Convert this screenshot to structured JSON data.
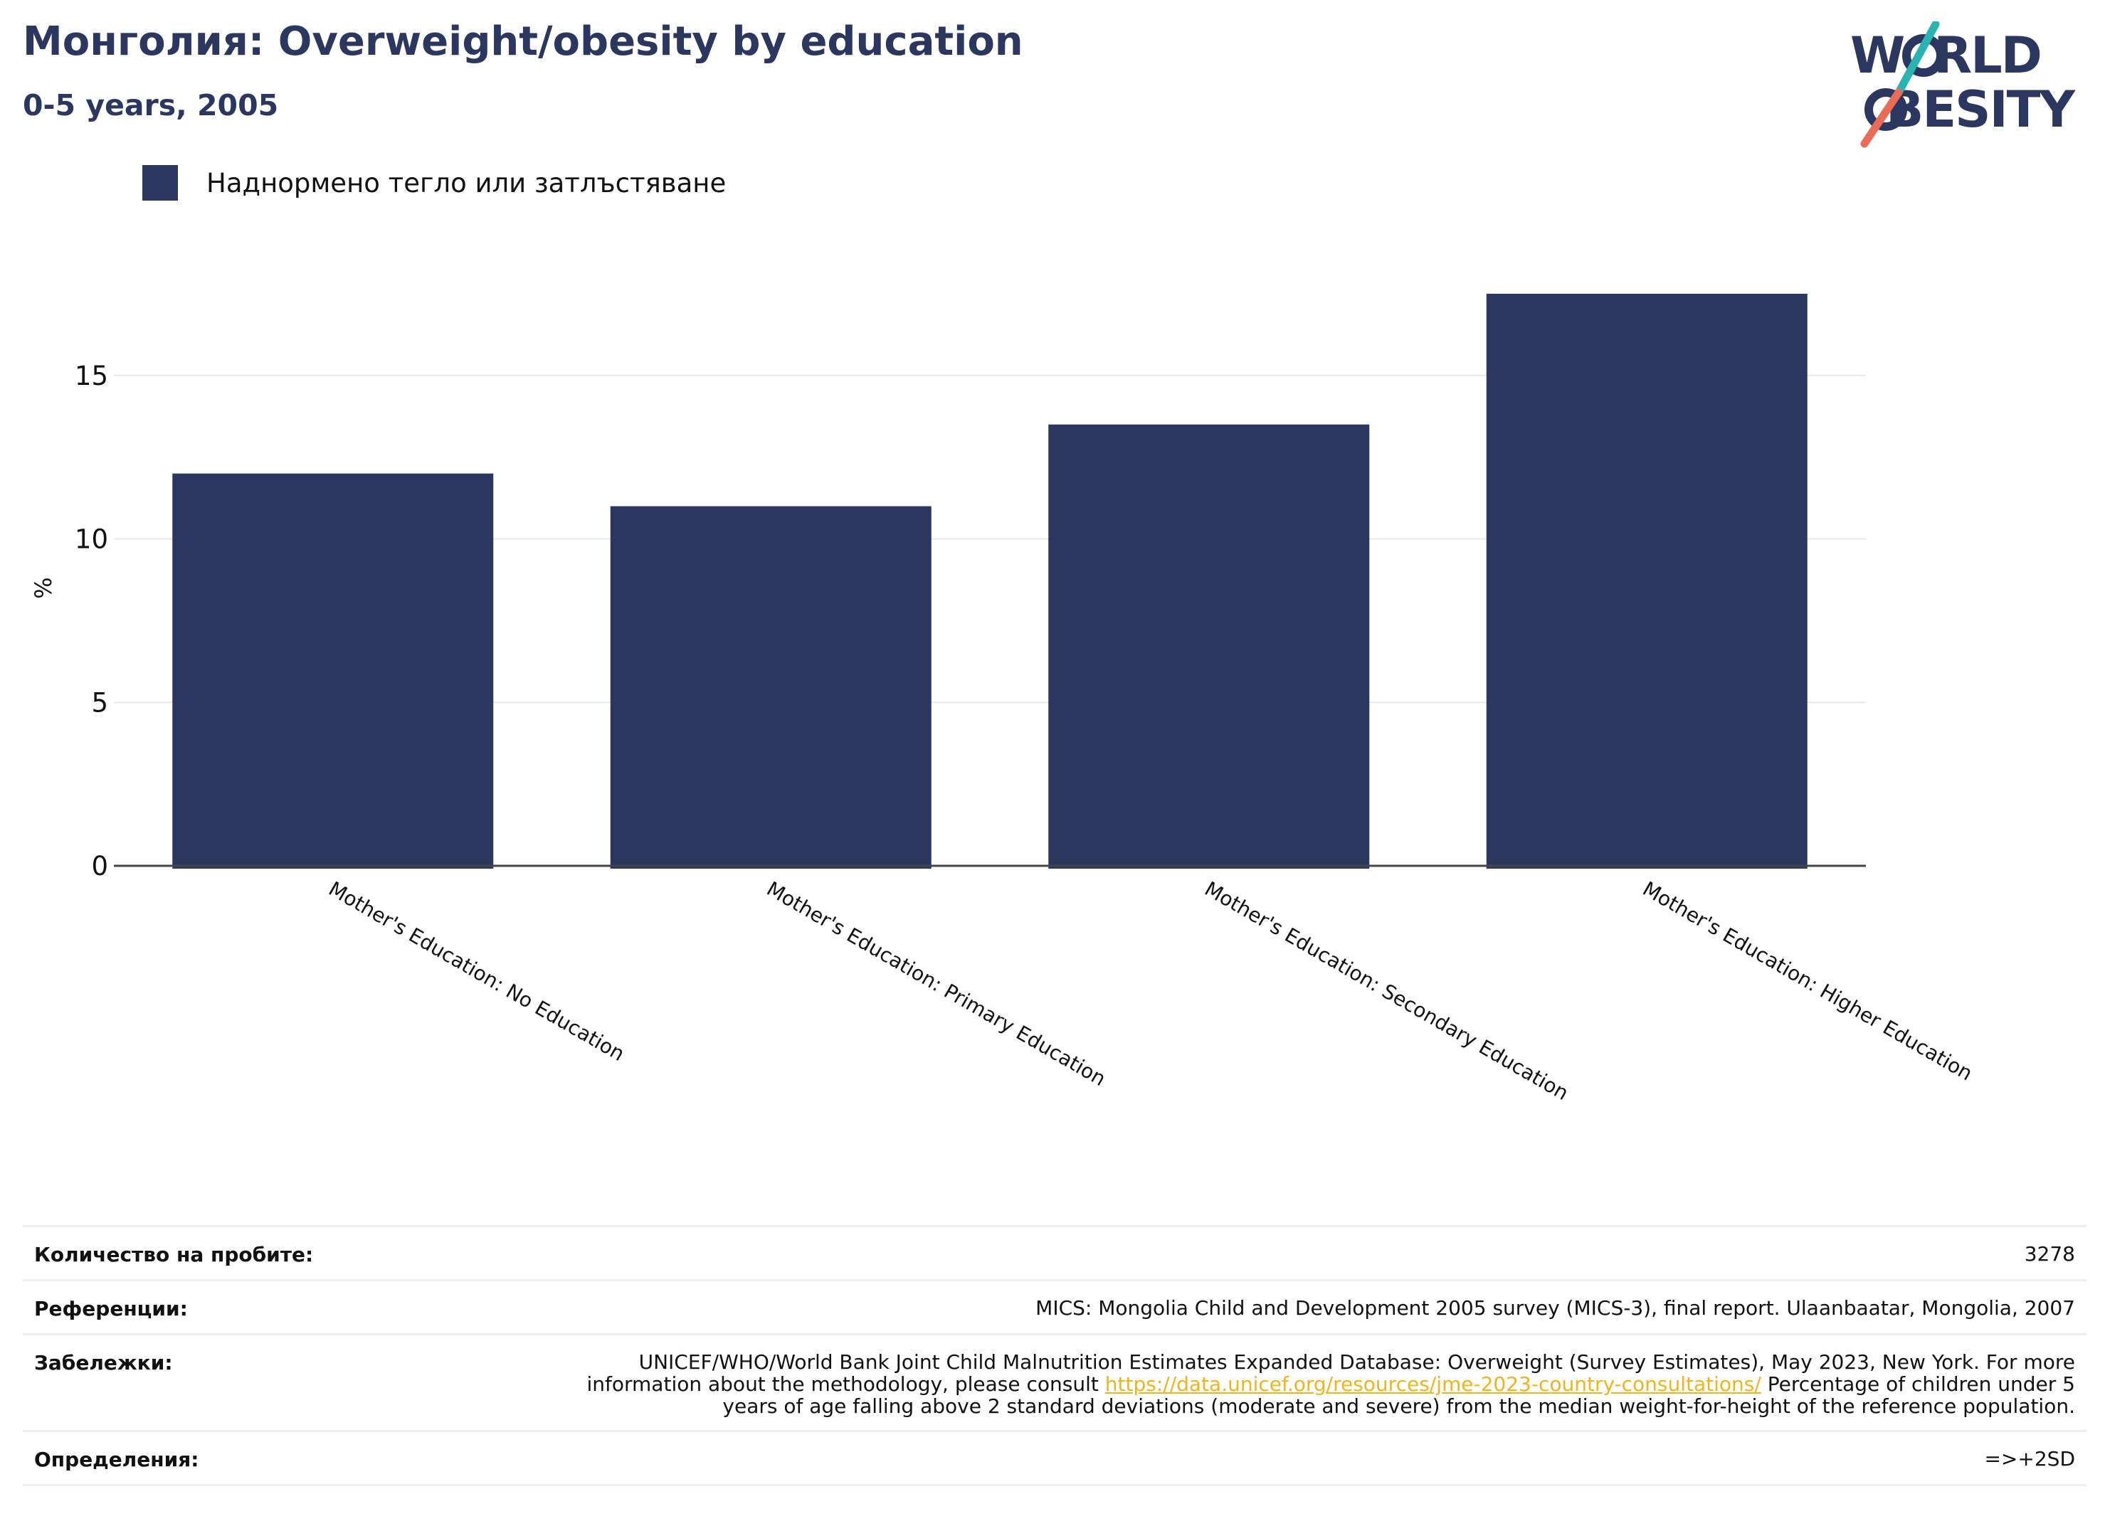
{
  "header": {
    "title": "Монголия: Overweight/obesity by education",
    "subtitle": "0-5 years, 2005"
  },
  "logo": {
    "line1": "WORLD",
    "line2": "OBESITY",
    "slash_color_top": "#2bb3b1",
    "slash_color_bottom": "#ea6b57"
  },
  "legend": {
    "label": "Наднормено тегло или затлъстяване"
  },
  "colors": {
    "bar": "#2b375f",
    "title": "#2b375f",
    "grid": "#e8e8ee",
    "axis": "#444444",
    "link": "#f2b31b"
  },
  "chart_data": {
    "type": "bar",
    "categories": [
      "Mother's Education: No Education",
      "Mother's Education: Primary Education",
      "Mother's Education: Secondary Education",
      "Mother's Education: Higher Education"
    ],
    "series": [
      {
        "name": "Наднормено тегло или затлъстяване",
        "values": [
          12.0,
          11.0,
          13.5,
          17.5
        ]
      }
    ],
    "ylabel": "%",
    "ylim": [
      0,
      18
    ],
    "yticks": [
      0,
      5,
      10,
      15
    ],
    "grid": true,
    "legend_position": "top-left"
  },
  "footer": {
    "rows": [
      {
        "label": "Количество на пробите:",
        "value": "3278"
      },
      {
        "label": "Референции:",
        "value": "MICS: Mongolia Child and Development 2005 survey (MICS-3), final report. Ulaanbaatar, Mongolia, 2007"
      },
      {
        "label": "Забележки:",
        "value_before": "UNICEF/WHO/World Bank Joint Child Malnutrition Estimates Expanded Database: Overweight (Survey Estimates), May 2023, New York. For more information about the methodology, please consult ",
        "link": "https://data.unicef.org/resources/jme-2023-country-consultations/",
        "value_after": " Percentage of children under 5 years of age falling above 2 standard deviations (moderate and severe) from the median weight-for-height of the reference population."
      },
      {
        "label": "Определения:",
        "value": "=>+2SD"
      }
    ]
  }
}
